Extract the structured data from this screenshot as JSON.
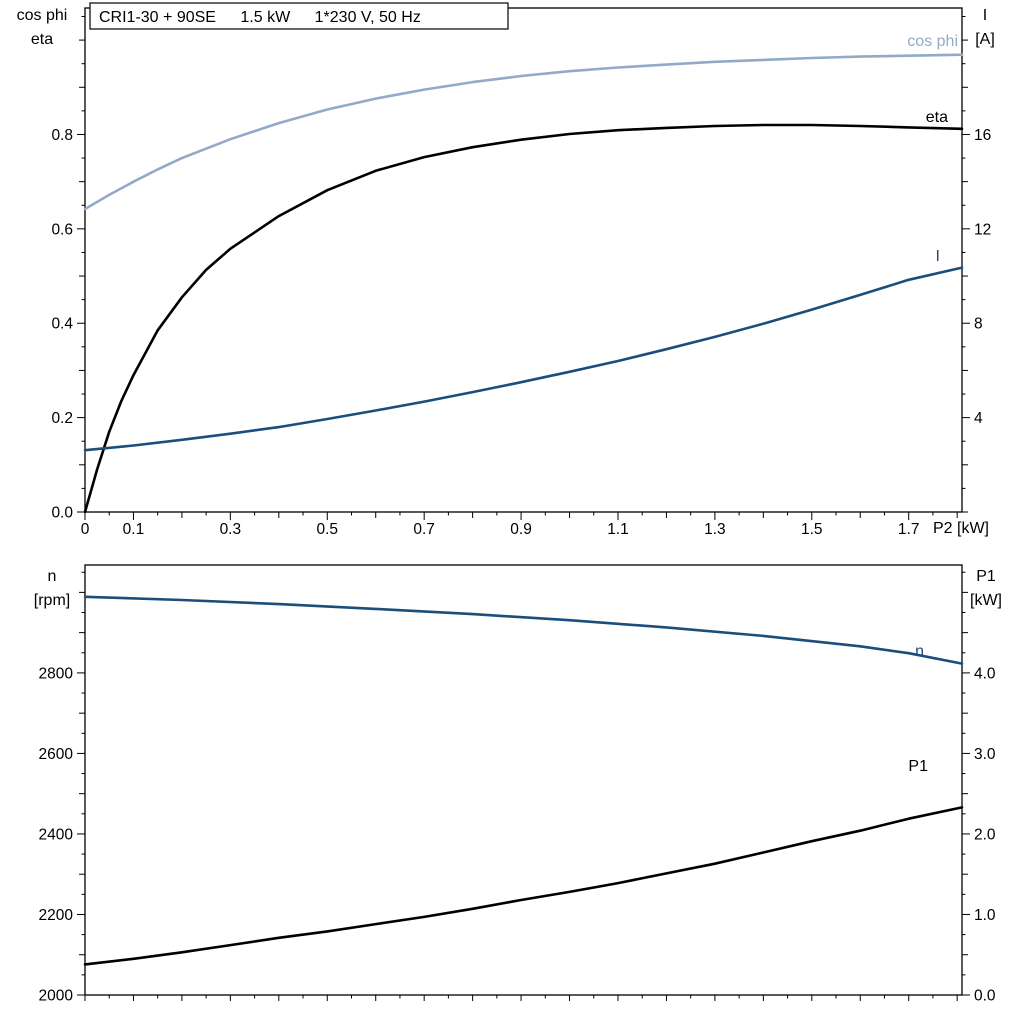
{
  "title_box": {
    "model": "CRI1-30 + 90SE",
    "power": "1.5 kW",
    "supply": "1*230 V, 50 Hz"
  },
  "colors": {
    "light_blue": "#92aac8",
    "dark_blue": "#1b4e7b",
    "black": "#000000"
  },
  "top_chart": {
    "left_axis_title_line1": "cos phi",
    "left_axis_title_line2": "eta",
    "right_axis_title_line1": "I",
    "right_axis_title_line2": "[A]",
    "x_axis_title": "P2 [kW]",
    "curve_labels": {
      "cos_phi": "cos phi",
      "eta": "eta",
      "current": "I"
    }
  },
  "bottom_chart": {
    "left_axis_title_line1": "n",
    "left_axis_title_line2": "[rpm]",
    "right_axis_title_line1": "P1",
    "right_axis_title_line2": "[kW]",
    "curve_labels": {
      "speed": "n",
      "power": "P1"
    }
  },
  "chart_data": [
    {
      "type": "line",
      "title": "CRI1-30 + 90SE 1.5 kW 1*230 V, 50 Hz",
      "xlabel": "P2 [kW]",
      "x_axis": {
        "min": 0,
        "max": 1.81,
        "minor_step": 0.05,
        "mid_step": 0.1,
        "tick_values": [
          0,
          0.1,
          0.3,
          0.5,
          0.7,
          0.9,
          1.1,
          1.3,
          1.5,
          1.7
        ],
        "tick_labels": [
          "0",
          "0.1",
          "0.3",
          "0.5",
          "0.7",
          "0.9",
          "1.1",
          "1.3",
          "1.5",
          "1.7"
        ]
      },
      "left_axis": {
        "label": "cos phi, eta",
        "min": 0,
        "max": 1.068,
        "minor_step": 0.05,
        "mid_step": 0.1,
        "tick_values": [
          0,
          0.2,
          0.4,
          0.6,
          0.8
        ],
        "tick_labels": [
          "0.0",
          "0.2",
          "0.4",
          "0.6",
          "0.8"
        ]
      },
      "right_axis": {
        "label": "I [A]",
        "min": 0,
        "max": 21.36,
        "minor_step": 1,
        "mid_step": 2,
        "tick_values": [
          4,
          8,
          12,
          16
        ],
        "tick_labels": [
          "4",
          "8",
          "12",
          "16"
        ]
      },
      "series": [
        {
          "name": "cos phi",
          "axis": "left",
          "color_key": "light_blue",
          "points": [
            [
              0,
              0.642
            ],
            [
              0.05,
              0.672
            ],
            [
              0.1,
              0.7
            ],
            [
              0.15,
              0.726
            ],
            [
              0.2,
              0.75
            ],
            [
              0.3,
              0.79
            ],
            [
              0.4,
              0.824
            ],
            [
              0.5,
              0.853
            ],
            [
              0.6,
              0.876
            ],
            [
              0.7,
              0.895
            ],
            [
              0.8,
              0.911
            ],
            [
              0.9,
              0.924
            ],
            [
              1.0,
              0.934
            ],
            [
              1.1,
              0.942
            ],
            [
              1.2,
              0.948
            ],
            [
              1.3,
              0.954
            ],
            [
              1.4,
              0.958
            ],
            [
              1.5,
              0.962
            ],
            [
              1.6,
              0.965
            ],
            [
              1.7,
              0.967
            ],
            [
              1.81,
              0.969
            ]
          ]
        },
        {
          "name": "eta",
          "axis": "left",
          "color_key": "black",
          "points": [
            [
              0,
              0
            ],
            [
              0.025,
              0.09
            ],
            [
              0.05,
              0.17
            ],
            [
              0.075,
              0.235
            ],
            [
              0.1,
              0.29
            ],
            [
              0.15,
              0.385
            ],
            [
              0.2,
              0.455
            ],
            [
              0.25,
              0.513
            ],
            [
              0.3,
              0.558
            ],
            [
              0.4,
              0.627
            ],
            [
              0.5,
              0.682
            ],
            [
              0.6,
              0.723
            ],
            [
              0.7,
              0.752
            ],
            [
              0.8,
              0.773
            ],
            [
              0.9,
              0.789
            ],
            [
              1.0,
              0.801
            ],
            [
              1.1,
              0.809
            ],
            [
              1.2,
              0.814
            ],
            [
              1.3,
              0.818
            ],
            [
              1.4,
              0.82
            ],
            [
              1.5,
              0.82
            ],
            [
              1.6,
              0.818
            ],
            [
              1.7,
              0.815
            ],
            [
              1.81,
              0.812
            ]
          ]
        },
        {
          "name": "I",
          "axis": "right",
          "color_key": "dark_blue",
          "points": [
            [
              0,
              2.62
            ],
            [
              0.1,
              2.82
            ],
            [
              0.2,
              3.06
            ],
            [
              0.3,
              3.32
            ],
            [
              0.4,
              3.6
            ],
            [
              0.5,
              3.94
            ],
            [
              0.6,
              4.3
            ],
            [
              0.7,
              4.68
            ],
            [
              0.8,
              5.08
            ],
            [
              0.9,
              5.5
            ],
            [
              1.0,
              5.94
            ],
            [
              1.1,
              6.4
            ],
            [
              1.2,
              6.9
            ],
            [
              1.3,
              7.42
            ],
            [
              1.4,
              7.98
            ],
            [
              1.5,
              8.58
            ],
            [
              1.6,
              9.2
            ],
            [
              1.7,
              9.84
            ],
            [
              1.81,
              10.36
            ]
          ]
        }
      ]
    },
    {
      "type": "line",
      "title": "",
      "xlabel": "P2 [kW]",
      "x_axis": {
        "min": 0,
        "max": 1.81,
        "minor_step": 0.05,
        "mid_step": 0.1,
        "tick_values": [],
        "tick_labels": []
      },
      "left_axis": {
        "label": "n [rpm]",
        "min": 2000,
        "max": 3068,
        "minor_step": 50,
        "mid_step": 100,
        "tick_values": [
          2000,
          2200,
          2400,
          2600,
          2800
        ],
        "tick_labels": [
          "2000",
          "2200",
          "2400",
          "2600",
          "2800"
        ]
      },
      "right_axis": {
        "label": "P1 [kW]",
        "min": 0,
        "max": 5.34,
        "minor_step": 0.25,
        "mid_step": 0.5,
        "tick_values": [
          0,
          1,
          2,
          3,
          4
        ],
        "tick_labels": [
          "0.0",
          "1.0",
          "2.0",
          "3.0",
          "4.0"
        ]
      },
      "series": [
        {
          "name": "n",
          "axis": "left",
          "color_key": "dark_blue",
          "points": [
            [
              0,
              2989
            ],
            [
              0.2,
              2981
            ],
            [
              0.4,
              2971
            ],
            [
              0.6,
              2959
            ],
            [
              0.8,
              2946
            ],
            [
              1.0,
              2931
            ],
            [
              1.2,
              2913
            ],
            [
              1.4,
              2892
            ],
            [
              1.6,
              2866
            ],
            [
              1.7,
              2849
            ],
            [
              1.81,
              2823
            ]
          ]
        },
        {
          "name": "P1",
          "axis": "right",
          "color_key": "black",
          "points": [
            [
              0,
              0.38
            ],
            [
              0.1,
              0.45
            ],
            [
              0.2,
              0.53
            ],
            [
              0.3,
              0.62
            ],
            [
              0.4,
              0.71
            ],
            [
              0.5,
              0.79
            ],
            [
              0.6,
              0.88
            ],
            [
              0.7,
              0.97
            ],
            [
              0.8,
              1.07
            ],
            [
              0.9,
              1.18
            ],
            [
              1.0,
              1.28
            ],
            [
              1.1,
              1.39
            ],
            [
              1.2,
              1.51
            ],
            [
              1.3,
              1.63
            ],
            [
              1.4,
              1.77
            ],
            [
              1.5,
              1.91
            ],
            [
              1.6,
              2.04
            ],
            [
              1.7,
              2.19
            ],
            [
              1.81,
              2.33
            ]
          ]
        }
      ]
    }
  ]
}
